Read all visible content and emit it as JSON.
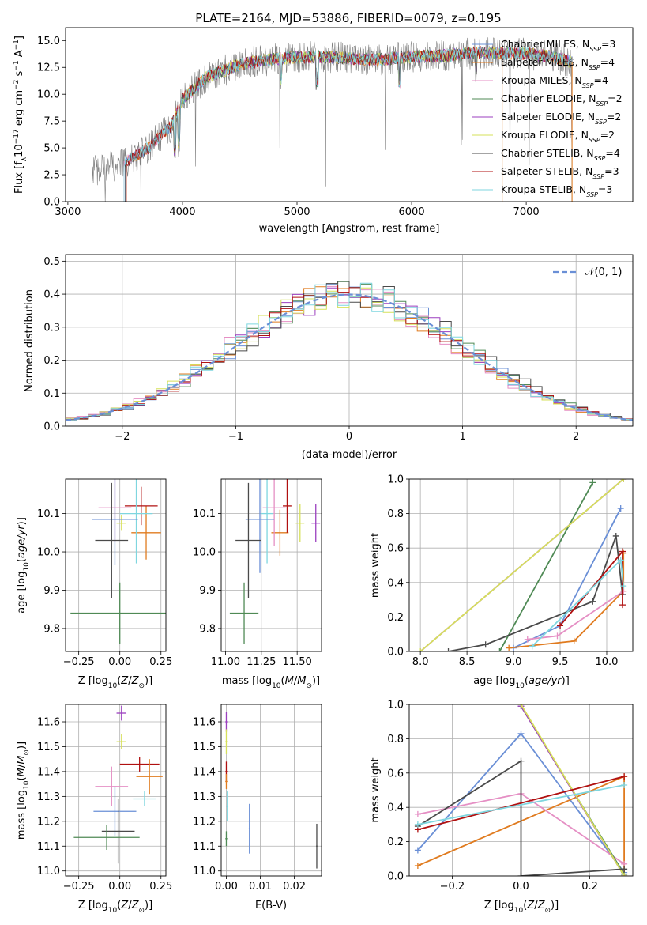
{
  "figure": {
    "title": "PLATE=2164, MJD=53886, FIBERID=0079, z=0.195"
  },
  "colors": {
    "Chabrier MILES": "#6a8fd6",
    "Salpeter MILES": "#e07b1f",
    "Kroupa MILES": "#e58fc4",
    "Chabrier ELODIE": "#4f8a55",
    "Salpeter ELODIE": "#9b3fbf",
    "Kroupa ELODIE": "#d6e05a",
    "Chabrier STELIB": "#4a4a4a",
    "Salpeter STELIB": "#b01010",
    "Kroupa STELIB": "#7fd6df",
    "data": "#808080",
    "normal": "#6a8fd6",
    "grid": "#b0b0b0"
  },
  "chart_data": [
    {
      "id": "spectrum",
      "type": "line",
      "title": "PLATE=2164, MJD=53886, FIBERID=0079, z=0.195",
      "xlabel": "wavelength [Angstrom, rest frame]",
      "ylabel": "Flux [f_λ 10^-17 erg cm^-2 s^-1 A^-1]",
      "xlim": [
        2980,
        7930
      ],
      "ylim": [
        0,
        16.2
      ],
      "xticks": [
        "3000",
        "4000",
        "5000",
        "6000",
        "7000"
      ],
      "yticks": [
        "0.0",
        "2.5",
        "5.0",
        "7.5",
        "10.0",
        "12.5",
        "15.0"
      ],
      "grid": false,
      "legend_position": "right",
      "legend": [
        {
          "name": "Chabrier MILES",
          "nssp": "3"
        },
        {
          "name": "Salpeter MILES",
          "nssp": "4"
        },
        {
          "name": "Kroupa MILES",
          "nssp": "4"
        },
        {
          "name": "Chabrier ELODIE",
          "nssp": "2"
        },
        {
          "name": "Salpeter ELODIE",
          "nssp": "2"
        },
        {
          "name": "Kroupa ELODIE",
          "nssp": "2"
        },
        {
          "name": "Chabrier STELIB",
          "nssp": "4"
        },
        {
          "name": "Salpeter STELIB",
          "nssp": "3"
        },
        {
          "name": "Kroupa STELIB",
          "nssp": "3"
        }
      ],
      "continuum": {
        "x": [
          3200,
          3500,
          3700,
          3900,
          4000,
          4200,
          4500,
          4800,
          5100,
          5400,
          5700,
          6000,
          6300,
          6600,
          6800,
          7000,
          7200,
          7400
        ],
        "y": [
          2.8,
          3.6,
          5.0,
          7.0,
          9.5,
          11.5,
          12.8,
          13.3,
          13.5,
          13.4,
          13.2,
          13.5,
          13.6,
          13.9,
          13.8,
          13.8,
          13.5,
          13.0
        ]
      },
      "data_range": [
        3210,
        7400
      ],
      "model_range": [
        3490,
        7400
      ]
    },
    {
      "id": "residuals",
      "type": "histogram",
      "xlabel": "(data-model)/error",
      "ylabel": "Normed distribution",
      "xlim": [
        -2.5,
        2.5
      ],
      "ylim": [
        0,
        0.52
      ],
      "xticks": [
        "−2",
        "−1",
        "0",
        "1",
        "2"
      ],
      "yticks": [
        "0.0",
        "0.1",
        "0.2",
        "0.3",
        "0.4",
        "0.5"
      ],
      "grid": true,
      "legend_position": "top-right",
      "legend": [
        {
          "name": "𝒩(0, 1)",
          "style": "dashed"
        }
      ],
      "bin_width": 0.1
    },
    {
      "id": "age_vs_Z",
      "type": "errorbar",
      "xlabel": "Z [log10(Z/Z⊙)]",
      "ylabel": "age [log10(age/yr)]",
      "xlim": [
        -0.33,
        0.28
      ],
      "ylim": [
        9.74,
        10.19
      ],
      "xticks": [
        "−0.25",
        "0.00",
        "0.25"
      ],
      "yticks": [
        "9.8",
        "9.9",
        "10.0",
        "10.1"
      ],
      "grid": true,
      "points": [
        {
          "model": "Salpeter MILES",
          "x": 0.16,
          "xerr": 0.09,
          "y": 10.05,
          "yerr": 0.07
        },
        {
          "model": "Kroupa ELODIE",
          "x": 0.01,
          "xerr": 0.03,
          "y": 10.075,
          "yerr": 0.02
        },
        {
          "model": "Kroupa MILES",
          "x": -0.03,
          "xerr": 0.1,
          "y": 10.115,
          "yerr": 0.09
        },
        {
          "model": "Salpeter STELIB",
          "x": 0.13,
          "xerr": 0.1,
          "y": 10.12,
          "yerr": 0.05
        },
        {
          "model": "Kroupa STELIB",
          "x": 0.1,
          "xerr": 0.1,
          "y": 10.1,
          "yerr": 0.13
        },
        {
          "model": "Chabrier MILES",
          "x": -0.03,
          "xerr": 0.14,
          "y": 10.085,
          "yerr": 0.12
        },
        {
          "model": "Chabrier STELIB",
          "x": -0.05,
          "xerr": 0.1,
          "y": 10.03,
          "yerr": 0.15
        },
        {
          "model": "Chabrier ELODIE",
          "x": 0.0,
          "xerr": 0.3,
          "y": 9.84,
          "yerr": 0.08
        }
      ]
    },
    {
      "id": "age_vs_mass",
      "type": "errorbar",
      "xlabel": "mass [log10(M/M⊙)]",
      "ylabel": "",
      "xlim": [
        10.97,
        11.67
      ],
      "ylim": [
        9.74,
        10.19
      ],
      "xticks": [
        "11.00",
        "11.25",
        "11.50"
      ],
      "yticks": [
        "9.8",
        "9.9",
        "10.0",
        "10.1"
      ],
      "grid": true,
      "points": [
        {
          "model": "Salpeter ELODIE",
          "x": 11.63,
          "xerr": 0.03,
          "y": 10.075,
          "yerr": 0.05
        },
        {
          "model": "Kroupa ELODIE",
          "x": 11.52,
          "xerr": 0.03,
          "y": 10.075,
          "yerr": 0.05
        },
        {
          "model": "Salpeter MILES",
          "x": 11.38,
          "xerr": 0.06,
          "y": 10.05,
          "yerr": 0.06
        },
        {
          "model": "Salpeter STELIB",
          "x": 11.43,
          "xerr": 0.03,
          "y": 10.12,
          "yerr": 0.07
        },
        {
          "model": "Kroupa MILES",
          "x": 11.34,
          "xerr": 0.08,
          "y": 10.115,
          "yerr": 0.1
        },
        {
          "model": "Kroupa STELIB",
          "x": 11.29,
          "xerr": 0.04,
          "y": 10.1,
          "yerr": 0.13
        },
        {
          "model": "Chabrier MILES",
          "x": 11.24,
          "xerr": 0.1,
          "y": 10.085,
          "yerr": 0.14
        },
        {
          "model": "Chabrier STELIB",
          "x": 11.16,
          "xerr": 0.09,
          "y": 10.03,
          "yerr": 0.15
        },
        {
          "model": "Chabrier ELODIE",
          "x": 11.13,
          "xerr": 0.1,
          "y": 9.84,
          "yerr": 0.08
        }
      ]
    },
    {
      "id": "massweight_vs_age",
      "type": "line",
      "xlabel": "age [log10(age/yr)]",
      "ylabel": "mass weight",
      "xlim": [
        7.88,
        10.28
      ],
      "ylim": [
        0,
        1
      ],
      "xticks": [
        "8.0",
        "8.5",
        "9.0",
        "9.5",
        "10.0"
      ],
      "yticks": [
        "0.0",
        "0.2",
        "0.4",
        "0.6",
        "0.8",
        "1.0"
      ],
      "grid": true,
      "series": [
        {
          "model": "Chabrier MILES",
          "x": [
            9.0,
            9.5,
            10.15
          ],
          "y": [
            0.02,
            0.15,
            0.83
          ]
        },
        {
          "model": "Salpeter MILES",
          "x": [
            8.95,
            9.65,
            10.18,
            10.18
          ],
          "y": [
            0.02,
            0.06,
            0.35,
            0.57
          ]
        },
        {
          "model": "Kroupa MILES",
          "x": [
            9.15,
            9.47,
            10.18
          ],
          "y": [
            0.07,
            0.09,
            0.35
          ]
        },
        {
          "model": "Chabrier ELODIE",
          "x": [
            8.85,
            9.85
          ],
          "y": [
            0.0,
            0.98
          ]
        },
        {
          "model": "Salpeter ELODIE",
          "x": [
            8.0,
            10.18
          ],
          "y": [
            0.0,
            1.0
          ]
        },
        {
          "model": "Kroupa ELODIE",
          "x": [
            8.0,
            10.18
          ],
          "y": [
            0.0,
            1.0
          ]
        },
        {
          "model": "Chabrier STELIB",
          "x": [
            8.3,
            8.7,
            9.85,
            10.1,
            10.17
          ],
          "y": [
            0.0,
            0.04,
            0.29,
            0.67,
            0.33
          ]
        },
        {
          "model": "Salpeter STELIB",
          "x": [
            9.5,
            10.17,
            10.17
          ],
          "y": [
            0.15,
            0.58,
            0.27
          ]
        },
        {
          "model": "Kroupa STELIB",
          "x": [
            9.2,
            10.15,
            10.18
          ],
          "y": [
            0.03,
            0.53,
            0.38
          ]
        }
      ]
    },
    {
      "id": "mass_vs_Z",
      "type": "errorbar",
      "xlabel": "Z [log10(Z/Z⊙)]",
      "ylabel": "mass [log10(M/M⊙)]",
      "xlim": [
        -0.33,
        0.28
      ],
      "ylim": [
        10.98,
        11.67
      ],
      "xticks": [
        "−0.25",
        "0.00",
        "0.25"
      ],
      "yticks": [
        "11.0",
        "11.1",
        "11.2",
        "11.3",
        "11.4",
        "11.5",
        "11.6"
      ],
      "grid": true,
      "points": [
        {
          "model": "Salpeter ELODIE",
          "x": 0.01,
          "xerr": 0.03,
          "y": 11.635,
          "yerr": 0.03
        },
        {
          "model": "Kroupa ELODIE",
          "x": 0.01,
          "xerr": 0.03,
          "y": 11.52,
          "yerr": 0.03
        },
        {
          "model": "Salpeter STELIB",
          "x": 0.12,
          "xerr": 0.12,
          "y": 11.43,
          "yerr": 0.03
        },
        {
          "model": "Salpeter MILES",
          "x": 0.18,
          "xerr": 0.08,
          "y": 11.38,
          "yerr": 0.07
        },
        {
          "model": "Kroupa MILES",
          "x": -0.05,
          "xerr": 0.1,
          "y": 11.34,
          "yerr": 0.08
        },
        {
          "model": "Kroupa STELIB",
          "x": 0.15,
          "xerr": 0.07,
          "y": 11.29,
          "yerr": 0.03
        },
        {
          "model": "Chabrier MILES",
          "x": -0.03,
          "xerr": 0.13,
          "y": 11.24,
          "yerr": 0.1
        },
        {
          "model": "Chabrier STELIB",
          "x": -0.01,
          "xerr": 0.1,
          "y": 11.16,
          "yerr": 0.13
        },
        {
          "model": "Chabrier ELODIE",
          "x": -0.08,
          "xerr": 0.2,
          "y": 11.135,
          "yerr": 0.05
        }
      ]
    },
    {
      "id": "mass_vs_ebv",
      "type": "errorbar",
      "xlabel": "E(B-V)",
      "ylabel": "",
      "xlim": [
        -0.0015,
        0.028
      ],
      "ylim": [
        10.98,
        11.67
      ],
      "xticks": [
        "0.00",
        "0.01",
        "0.02"
      ],
      "yticks": [
        "11.0",
        "11.1",
        "11.2",
        "11.3",
        "11.4",
        "11.5",
        "11.6"
      ],
      "grid": true,
      "points": [
        {
          "model": "Salpeter ELODIE",
          "x": 0.0,
          "xerr": 0.0003,
          "y": 11.6,
          "yerr": 0.04
        },
        {
          "model": "Kroupa ELODIE",
          "x": 0.0,
          "xerr": 0.0003,
          "y": 11.52,
          "yerr": 0.05
        },
        {
          "model": "Salpeter STELIB",
          "x": 0.0,
          "xerr": 0.0003,
          "y": 11.4,
          "yerr": 0.04
        },
        {
          "model": "Salpeter MILES",
          "x": 0.0,
          "xerr": 0.0003,
          "y": 11.36,
          "yerr": 0.03
        },
        {
          "model": "Kroupa STELIB",
          "x": 0.0003,
          "xerr": 0.0003,
          "y": 11.26,
          "yerr": 0.06
        },
        {
          "model": "Chabrier ELODIE",
          "x": 0.0,
          "xerr": 0.0003,
          "y": 11.13,
          "yerr": 0.03
        },
        {
          "model": "Chabrier MILES",
          "x": 0.0068,
          "xerr": 0.0002,
          "y": 11.17,
          "yerr": 0.1
        },
        {
          "model": "Chabrier STELIB",
          "x": 0.0266,
          "xerr": 0.0002,
          "y": 11.1,
          "yerr": 0.09
        }
      ]
    },
    {
      "id": "massweight_vs_Z",
      "type": "line",
      "xlabel": "Z [log10(Z/Z⊙)]",
      "ylabel": "mass weight",
      "xlim": [
        -0.325,
        0.325
      ],
      "ylim": [
        0,
        1
      ],
      "xticks": [
        "−0.2",
        "0.0",
        "0.2"
      ],
      "yticks": [
        "0.0",
        "0.2",
        "0.4",
        "0.6",
        "0.8",
        "1.0"
      ],
      "grid": true,
      "series": [
        {
          "model": "Chabrier MILES",
          "x": [
            -0.3,
            0.0,
            0.3
          ],
          "y": [
            0.15,
            0.83,
            0.02
          ]
        },
        {
          "model": "Salpeter MILES",
          "x": [
            -0.3,
            0.3,
            0.3
          ],
          "y": [
            0.06,
            0.58,
            0.0
          ]
        },
        {
          "model": "Kroupa MILES",
          "x": [
            -0.3,
            0.0,
            0.3
          ],
          "y": [
            0.36,
            0.48,
            0.07
          ]
        },
        {
          "model": "Chabrier ELODIE",
          "x": [
            0.0,
            0.3
          ],
          "y": [
            0.99,
            0.01
          ]
        },
        {
          "model": "Salpeter ELODIE",
          "x": [
            0.0,
            0.3
          ],
          "y": [
            0.99,
            0.0
          ]
        },
        {
          "model": "Kroupa ELODIE",
          "x": [
            0.0,
            0.3
          ],
          "y": [
            1.0,
            0.0
          ]
        },
        {
          "model": "Chabrier STELIB",
          "x": [
            -0.3,
            0.0,
            0.0,
            0.3
          ],
          "y": [
            0.29,
            0.67,
            0.0,
            0.04
          ]
        },
        {
          "model": "Salpeter STELIB",
          "x": [
            -0.3,
            0.3
          ],
          "y": [
            0.27,
            0.58
          ]
        },
        {
          "model": "Kroupa STELIB",
          "x": [
            -0.3,
            0.3
          ],
          "y": [
            0.3,
            0.53
          ]
        }
      ]
    }
  ]
}
